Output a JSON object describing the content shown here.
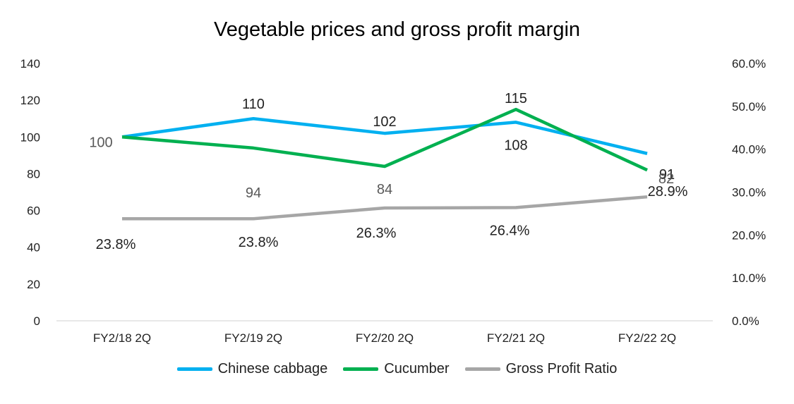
{
  "chart_data": {
    "type": "line",
    "title": "Vegetable prices and gross profit margin",
    "categories": [
      "FY2/18 2Q",
      "FY2/19 2Q",
      "FY2/20 2Q",
      "FY2/21 2Q",
      "FY2/22 2Q"
    ],
    "y_left": {
      "ylim": [
        0,
        140
      ],
      "ticks": [
        "0",
        "20",
        "40",
        "60",
        "80",
        "100",
        "120",
        "140"
      ]
    },
    "y_right": {
      "ylim": [
        0,
        0.6
      ],
      "ticks": [
        "0.0%",
        "10.0%",
        "20.0%",
        "30.0%",
        "40.0%",
        "50.0%",
        "60.0%"
      ]
    },
    "grid": false,
    "legend_position": "bottom",
    "series": [
      {
        "name": "Chinese cabbage",
        "axis": "left",
        "color": "#00B0F0",
        "values": [
          100,
          110,
          102,
          108,
          91
        ],
        "labels": [
          "100",
          "110",
          "102",
          "108",
          "91"
        ]
      },
      {
        "name": "Cucumber",
        "axis": "left",
        "color": "#00B050",
        "values": [
          100,
          94,
          84,
          115,
          82
        ],
        "labels": [
          "",
          "94",
          "84",
          "115",
          "82"
        ]
      },
      {
        "name": "Gross Profit Ratio",
        "axis": "right",
        "color": "#A6A6A6",
        "values": [
          0.238,
          0.238,
          0.263,
          0.264,
          0.289
        ],
        "labels": [
          "23.8%",
          "23.8%",
          "26.3%",
          "26.4%",
          "28.9%"
        ]
      }
    ]
  }
}
